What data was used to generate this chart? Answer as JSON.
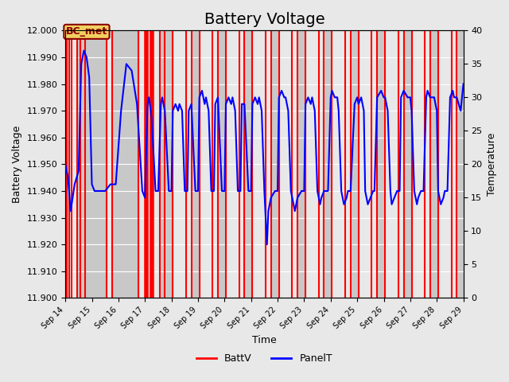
{
  "title": "Battery Voltage",
  "xlabel": "Time",
  "ylabel_left": "Battery Voltage",
  "ylabel_right": "Temperature",
  "ylim_left": [
    11.9,
    12.0
  ],
  "ylim_right": [
    0,
    40
  ],
  "xlim": [
    0,
    15
  ],
  "x_tick_labels": [
    "Sep 14",
    "Sep 15",
    "Sep 16",
    "Sep 17",
    "Sep 18",
    "Sep 19",
    "Sep 20",
    "Sep 21",
    "Sep 22",
    "Sep 23",
    "Sep 24",
    "Sep 25",
    "Sep 26",
    "Sep 27",
    "Sep 28",
    "Sep 29"
  ],
  "x_tick_positions": [
    0,
    1,
    2,
    3,
    4,
    5,
    6,
    7,
    8,
    9,
    10,
    11,
    12,
    13,
    14,
    15
  ],
  "red_vlines": [
    0.05,
    0.15,
    0.25,
    0.45,
    0.55,
    0.75,
    1.55,
    1.75,
    2.75,
    3.05,
    3.25,
    3.55,
    3.75,
    4.05,
    4.55,
    4.75,
    5.05,
    5.55,
    5.75,
    6.05,
    6.55,
    6.75,
    7.05,
    7.55,
    7.75,
    8.05,
    8.55,
    8.75,
    9.05,
    9.55,
    9.75,
    10.05,
    10.55,
    10.75,
    11.05,
    11.55,
    11.75,
    12.05,
    12.55,
    12.75,
    13.05,
    13.55,
    13.75,
    14.05,
    14.55,
    14.75
  ],
  "red_thick_vlines": [
    3.05,
    3.25
  ],
  "gray_bands": [
    [
      0.45,
      1.55
    ],
    [
      1.75,
      2.75
    ],
    [
      3.55,
      4.05
    ],
    [
      4.75,
      5.05
    ],
    [
      5.75,
      6.05
    ],
    [
      6.75,
      7.05
    ],
    [
      7.75,
      8.05
    ],
    [
      8.75,
      9.05
    ],
    [
      9.75,
      10.05
    ],
    [
      10.75,
      11.05
    ],
    [
      11.75,
      12.05
    ],
    [
      12.75,
      13.05
    ],
    [
      13.75,
      14.05
    ],
    [
      14.75,
      15.0
    ]
  ],
  "blue_x": [
    0.0,
    0.1,
    0.2,
    0.35,
    0.5,
    0.6,
    0.7,
    0.8,
    0.9,
    1.0,
    1.1,
    1.3,
    1.5,
    1.7,
    1.9,
    2.1,
    2.3,
    2.5,
    2.7,
    2.9,
    3.0,
    3.1,
    3.15,
    3.25,
    3.4,
    3.5,
    3.6,
    3.65,
    3.75,
    3.9,
    4.0,
    4.05,
    4.15,
    4.25,
    4.3,
    4.4,
    4.5,
    4.6,
    4.65,
    4.75,
    4.9,
    5.0,
    5.05,
    5.15,
    5.25,
    5.3,
    5.4,
    5.5,
    5.6,
    5.65,
    5.75,
    5.9,
    6.0,
    6.05,
    6.15,
    6.25,
    6.3,
    6.4,
    6.5,
    6.6,
    6.65,
    6.75,
    6.9,
    7.0,
    7.05,
    7.15,
    7.25,
    7.3,
    7.4,
    7.5,
    7.6,
    7.65,
    7.75,
    7.9,
    8.0,
    8.05,
    8.15,
    8.25,
    8.3,
    8.4,
    8.5,
    8.6,
    8.65,
    8.75,
    8.9,
    9.0,
    9.05,
    9.15,
    9.25,
    9.3,
    9.4,
    9.5,
    9.6,
    9.65,
    9.75,
    9.9,
    10.0,
    10.05,
    10.15,
    10.25,
    10.3,
    10.4,
    10.5,
    10.6,
    10.65,
    10.75,
    10.9,
    11.0,
    11.05,
    11.15,
    11.25,
    11.3,
    11.4,
    11.5,
    11.6,
    11.65,
    11.75,
    11.9,
    12.0,
    12.05,
    12.15,
    12.25,
    12.3,
    12.4,
    12.5,
    12.6,
    12.65,
    12.75,
    12.9,
    13.0,
    13.05,
    13.15,
    13.25,
    13.3,
    13.4,
    13.5,
    13.6,
    13.65,
    13.75,
    13.9,
    14.0,
    14.05,
    14.15,
    14.25,
    14.3,
    14.4,
    14.5,
    14.6,
    14.65,
    14.75,
    14.9,
    15.0
  ],
  "blue_y": [
    20,
    18,
    13,
    17,
    19,
    35,
    37,
    36,
    33,
    17,
    16,
    16,
    16,
    17,
    17,
    28,
    35,
    34,
    29,
    16,
    15,
    29,
    30,
    27,
    16,
    16,
    29,
    30,
    28,
    16,
    16,
    28,
    29,
    28,
    29,
    28,
    16,
    16,
    28,
    29,
    16,
    16,
    30,
    31,
    29,
    30,
    28,
    16,
    16,
    29,
    30,
    16,
    16,
    29,
    30,
    29,
    30,
    28,
    16,
    16,
    29,
    29,
    16,
    16,
    29,
    30,
    29,
    30,
    28,
    16,
    8,
    13,
    15,
    16,
    16,
    30,
    31,
    30,
    30,
    28,
    16,
    14,
    13,
    15,
    16,
    16,
    29,
    30,
    29,
    30,
    28,
    16,
    14,
    15,
    16,
    16,
    30,
    31,
    30,
    30,
    28,
    16,
    14,
    15,
    16,
    16,
    29,
    30,
    29,
    30,
    28,
    16,
    14,
    15,
    16,
    16,
    30,
    31,
    30,
    30,
    28,
    16,
    14,
    15,
    16,
    16,
    30,
    31,
    30,
    30,
    28,
    16,
    14,
    15,
    16,
    16,
    30,
    31,
    30,
    30,
    28,
    16,
    14,
    15,
    16,
    16,
    30,
    31,
    30,
    30,
    28,
    32
  ],
  "bc_met_label": "BC_met",
  "bc_met_x": 0.02,
  "bc_met_y": 11.9985,
  "legend_labels": [
    "BattV",
    "PanelT"
  ],
  "legend_colors": [
    "red",
    "blue"
  ],
  "background_color": "#e8e8e8",
  "plot_bg_color": "#e8e8e8",
  "gray_band_color": "#c8c8c8",
  "title_fontsize": 14
}
